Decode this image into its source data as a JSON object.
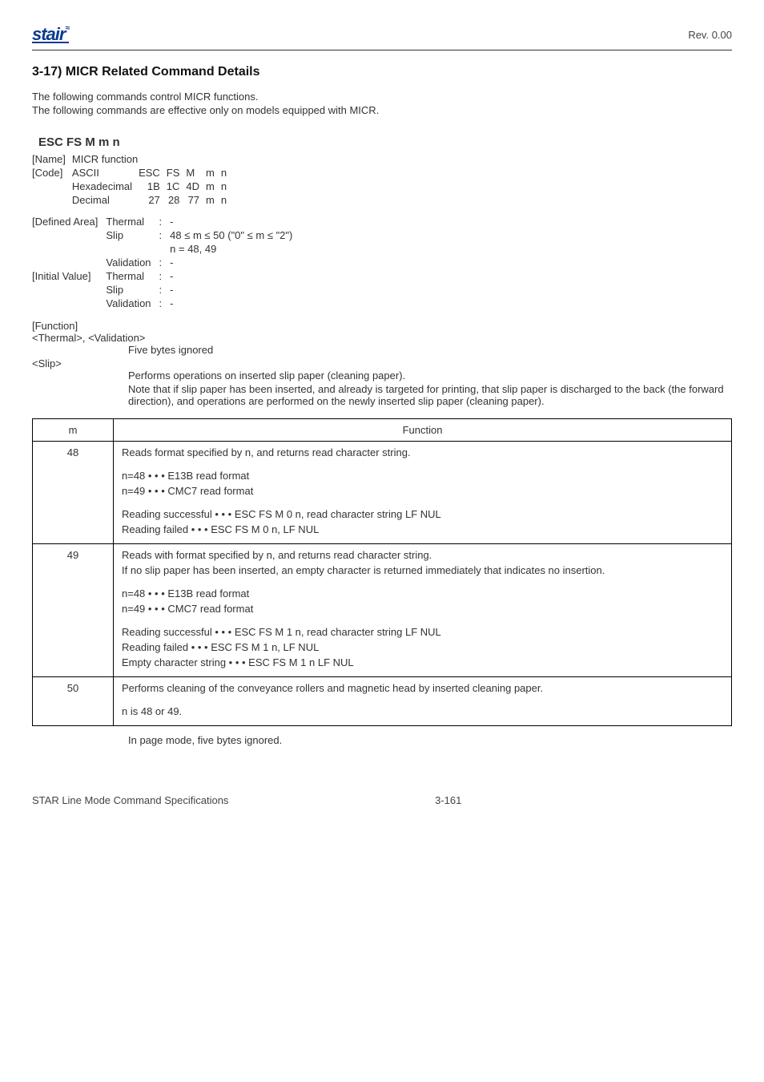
{
  "header": {
    "logo_main": "stair",
    "logo_sup": "≈",
    "revision": "Rev. 0.00"
  },
  "section": {
    "number_title": "3-17)  MICR Related Command Details",
    "intro1": "The following commands control MICR functions.",
    "intro2": "The following commands are effective only on models equipped with MICR."
  },
  "command": {
    "title": "ESC FS M m n",
    "name_label": "[Name]",
    "name_value": "MICR function",
    "code_label": "[Code]",
    "rows": {
      "ascii": {
        "label": "ASCII",
        "c1": "ESC",
        "c2": "FS",
        "c3": "M",
        "c4": "m",
        "c5": "n"
      },
      "hex": {
        "label": "Hexadecimal",
        "c1": "1B",
        "c2": "1C",
        "c3": "4D",
        "c4": "m",
        "c5": "n"
      },
      "decimal": {
        "label": "Decimal",
        "c1": "27",
        "c2": "28",
        "c3": "77",
        "c4": "m",
        "c5": "n"
      }
    },
    "defined_area_label": "[Defined Area]",
    "initial_value_label": "[Initial Value]",
    "defs": {
      "thermal_label": "Thermal",
      "slip_label": "Slip",
      "validation_label": "Validation",
      "thermal_da": "-",
      "slip_da_line1": "48 ≤ m ≤ 50 (\"0\" ≤ m ≤ \"2\")",
      "slip_da_line2": "n = 48, 49",
      "validation_da": "-",
      "thermal_iv": "-",
      "slip_iv": "-",
      "validation_iv": "-"
    }
  },
  "function_section": {
    "label": "[Function]",
    "thermal_validation_header": "<Thermal>, <Validation>",
    "thermal_validation_text": "Five bytes ignored",
    "slip_header": "<Slip>",
    "slip_text1": "Performs operations on inserted slip paper (cleaning paper).",
    "slip_text2": "Note that if slip paper has been inserted, and already is targeted for printing, that slip paper is discharged to the back (the forward direction), and operations are performed on the newly inserted slip paper (cleaning paper)."
  },
  "table": {
    "head_m": "m",
    "head_func": "Function",
    "rows": [
      {
        "m": "48",
        "lines": [
          "Reads format specified by n, and returns read character string.",
          "",
          "n=48 • • • E13B read format",
          "n=49 • • • CMC7 read format",
          "",
          "Reading successful  • • • ESC FS M 0 n, read character string LF NUL",
          "Reading failed  • • • ESC FS M 0 n, LF NUL"
        ]
      },
      {
        "m": "49",
        "lines": [
          "Reads with format specified by n, and returns read character string.",
          "If no slip paper has been inserted, an empty character is returned immediately that indicates no insertion.",
          "",
          "n=48 • • • E13B read format",
          "n=49 • • • CMC7 read format",
          "",
          "Reading successful  • • • ESC FS M 1 n, read character string LF NUL",
          "Reading failed  • • • ESC FS M 1 n, LF NUL",
          "Empty character string  • • • ESC FS M 1 n LF NUL"
        ]
      },
      {
        "m": "50",
        "lines": [
          "Performs cleaning of the conveyance rollers and magnetic head by inserted cleaning paper.",
          "",
          "n is 48 or 49."
        ]
      }
    ],
    "after": "In page mode, five bytes ignored."
  },
  "footer": {
    "left": "STAR Line Mode Command Specifications",
    "center": "3-161"
  },
  "colors": {
    "logo": "#0a3b8f",
    "text": "#333333",
    "border": "#000000"
  }
}
